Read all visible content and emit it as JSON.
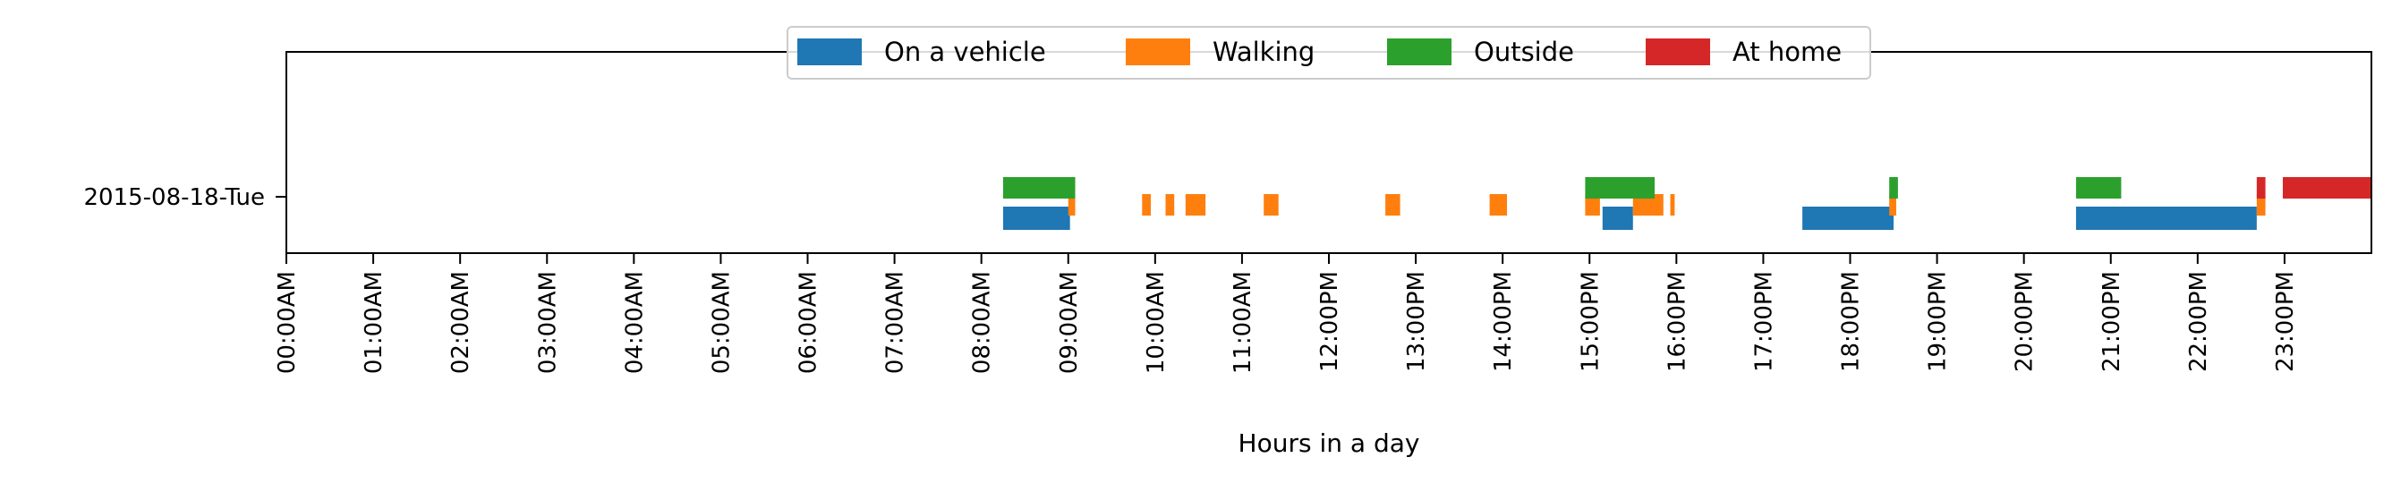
{
  "chart_data": {
    "type": "timeline",
    "xlabel": "Hours in a day",
    "xlim": [
      0,
      24
    ],
    "x_ticks": [
      "00:00AM",
      "01:00AM",
      "02:00AM",
      "03:00AM",
      "04:00AM",
      "05:00AM",
      "06:00AM",
      "07:00AM",
      "08:00AM",
      "09:00AM",
      "10:00AM",
      "11:00AM",
      "12:00PM",
      "13:00PM",
      "14:00PM",
      "15:00PM",
      "16:00PM",
      "17:00PM",
      "18:00PM",
      "19:00PM",
      "20:00PM",
      "21:00PM",
      "22:00PM",
      "23:00PM"
    ],
    "y_label": "2015-08-18-Tue",
    "legend_position": "top-center",
    "grid": false,
    "series": [
      {
        "name": "On a vehicle",
        "color": "#1f77b4",
        "row": "bottom",
        "intervals": [
          [
            8.25,
            9.02
          ],
          [
            15.15,
            15.5
          ],
          [
            17.45,
            18.5
          ],
          [
            20.6,
            22.68
          ]
        ]
      },
      {
        "name": "Walking",
        "color": "#ff7f0e",
        "row": "middle",
        "intervals": [
          [
            9.0,
            9.08
          ],
          [
            9.85,
            9.95
          ],
          [
            10.12,
            10.22
          ],
          [
            10.35,
            10.58
          ],
          [
            11.25,
            11.42
          ],
          [
            12.65,
            12.82
          ],
          [
            13.85,
            14.05
          ],
          [
            14.95,
            15.12
          ],
          [
            15.5,
            15.85
          ],
          [
            15.93,
            15.98
          ],
          [
            18.45,
            18.53
          ],
          [
            22.68,
            22.78
          ]
        ]
      },
      {
        "name": "Outside",
        "color": "#2ca02c",
        "row": "top",
        "intervals": [
          [
            8.25,
            9.08
          ],
          [
            14.95,
            15.75
          ],
          [
            18.45,
            18.55
          ],
          [
            20.6,
            21.12
          ]
        ]
      },
      {
        "name": "At home",
        "color": "#d62728",
        "row": "top",
        "intervals": [
          [
            22.68,
            22.78
          ],
          [
            22.98,
            24.0
          ]
        ]
      }
    ]
  }
}
